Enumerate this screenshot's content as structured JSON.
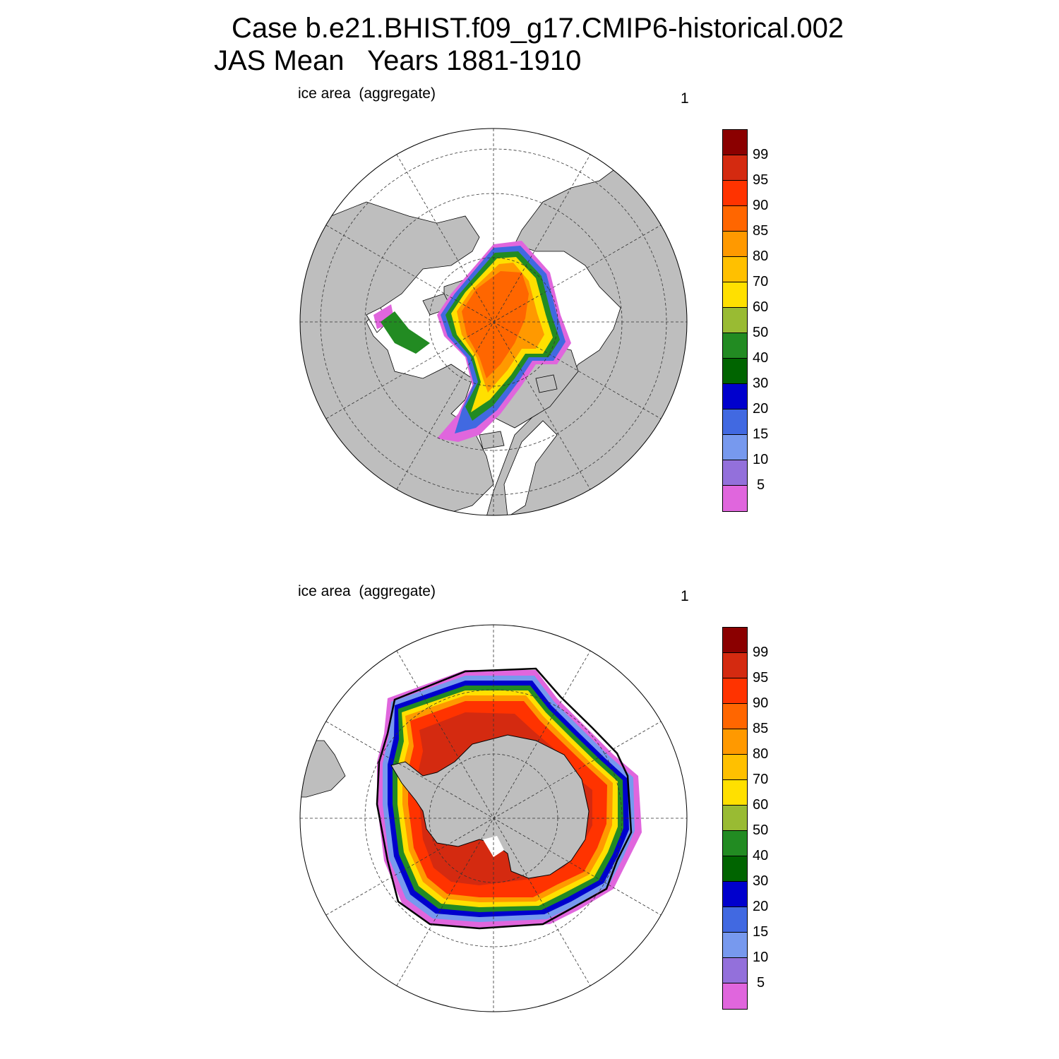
{
  "title": {
    "line1": "Case b.e21.BHIST.f09_g17.CMIP6-historical.002",
    "line2": "JAS Mean   Years 1881-1910"
  },
  "panels": [
    {
      "id": "north",
      "label": "ice area  (aggregate)",
      "number": "1",
      "hemisphere": "Arctic"
    },
    {
      "id": "south",
      "label": "ice area  (aggregate)",
      "number": "1",
      "hemisphere": "Antarctic"
    }
  ],
  "colorbar": {
    "labels": [
      "99",
      "95",
      "90",
      "85",
      "80",
      "70",
      "60",
      "50",
      "40",
      "30",
      "20",
      "15",
      "10",
      "5"
    ],
    "colors": [
      "#8b0000",
      "#d42a10",
      "#ff3300",
      "#ff6600",
      "#ff9900",
      "#ffc000",
      "#ffe000",
      "#99bb33",
      "#228b22",
      "#006400",
      "#0000cd",
      "#4169e1",
      "#7799ee",
      "#9370db",
      "#e066dd"
    ]
  },
  "colors": {
    "land": "#bebebe",
    "ocean": "#ffffff"
  }
}
